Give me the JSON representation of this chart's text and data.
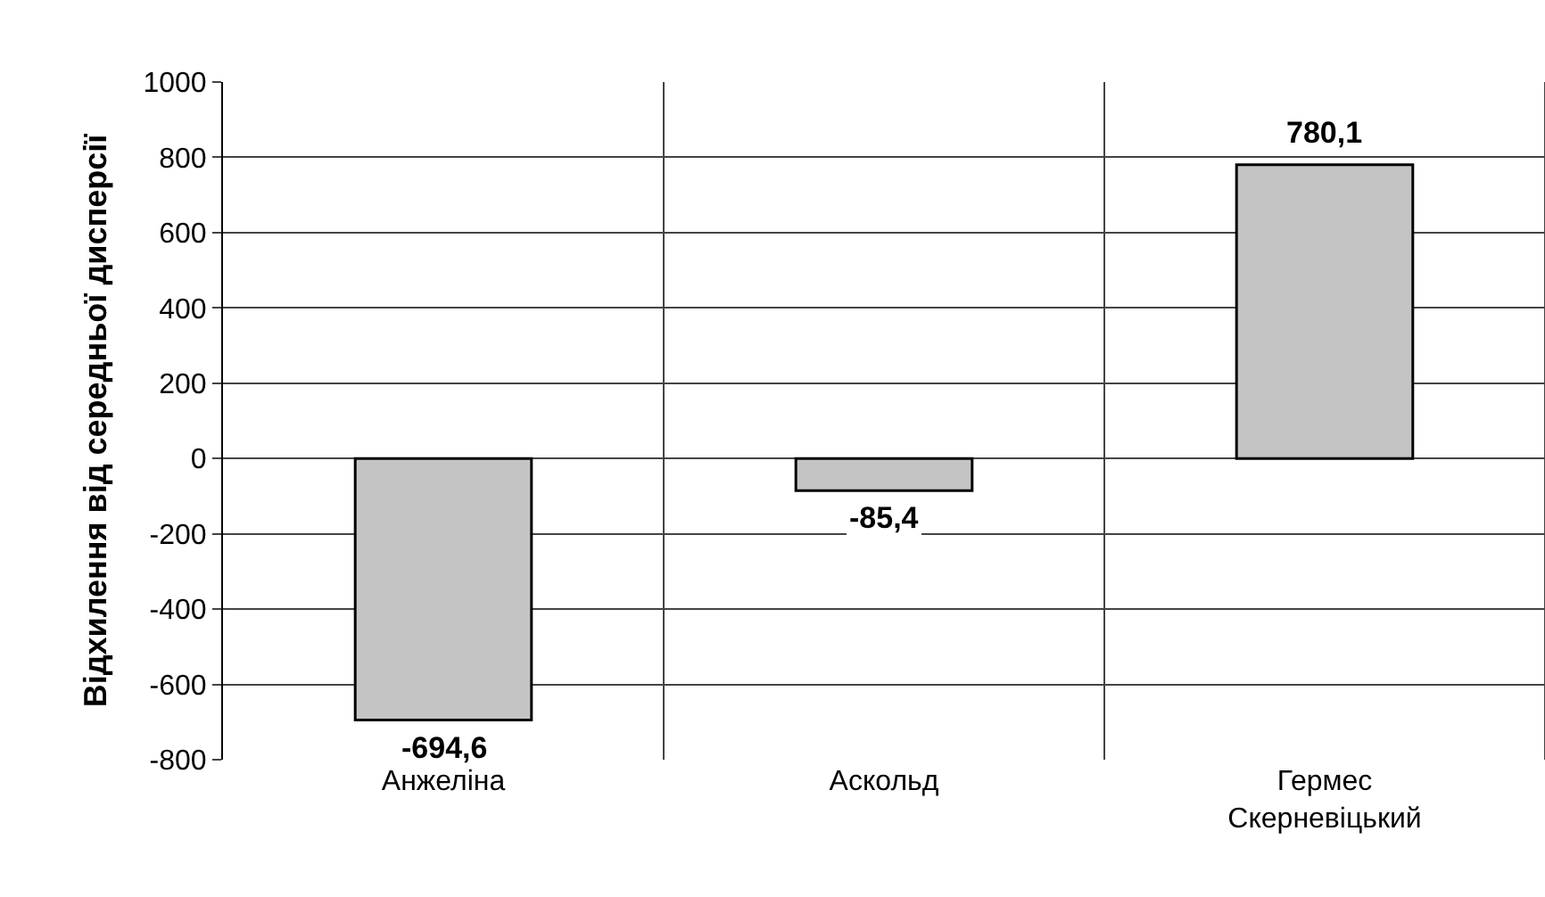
{
  "chart_data": {
    "type": "bar",
    "ylabel": "Відхилення від середньої дисперсії",
    "categories": [
      "Анжеліна",
      "Аскольд",
      "Гермес Скерневіцький"
    ],
    "values": [
      -694.6,
      -85.4,
      780.1
    ],
    "value_labels": [
      "-694,6",
      "-85,4",
      "780,1"
    ],
    "color": "#c4c4c4",
    "ylim": [
      -800,
      1000
    ],
    "yticks": [
      -800,
      -600,
      -400,
      -200,
      0,
      200,
      400,
      600,
      800,
      1000
    ],
    "grid": true
  }
}
